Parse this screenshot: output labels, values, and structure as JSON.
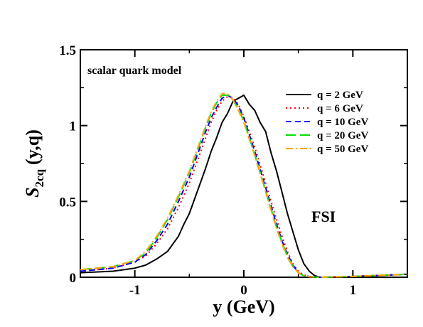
{
  "chart_data": {
    "type": "line",
    "xlabel": "y (GeV)",
    "ylabel": {
      "main": "S",
      "sub": "2cq",
      "rest": "(y,q)"
    },
    "xlim": [
      -1.5,
      1.5
    ],
    "ylim": [
      0,
      1.5
    ],
    "xticks": [
      -1,
      0,
      1
    ],
    "xtick_labels": [
      "-1",
      "0",
      "1"
    ],
    "yticks": [
      0,
      0.5,
      1,
      1.5
    ],
    "ytick_labels": [
      "0",
      "0.5",
      "1",
      "1.5"
    ],
    "grid": false,
    "legend_position": "top-right",
    "annotations": {
      "model": "scalar quark model",
      "fsi": "FSI"
    },
    "series": [
      {
        "name": "q = 2 GeV",
        "color": "#000000",
        "dash": "solid",
        "x": [
          -1.5,
          -1.2,
          -1.0,
          -0.9,
          -0.8,
          -0.7,
          -0.65,
          -0.6,
          -0.55,
          -0.5,
          -0.45,
          -0.4,
          -0.35,
          -0.3,
          -0.25,
          -0.2,
          -0.15,
          -0.1,
          -0.05,
          0.0,
          0.05,
          0.1,
          0.15,
          0.2,
          0.25,
          0.3,
          0.35,
          0.4,
          0.45,
          0.5,
          0.55,
          0.6,
          0.65,
          0.7,
          0.8,
          1.0,
          1.2,
          1.5
        ],
        "y": [
          0.03,
          0.04,
          0.06,
          0.08,
          0.12,
          0.17,
          0.22,
          0.27,
          0.35,
          0.42,
          0.52,
          0.62,
          0.72,
          0.83,
          0.92,
          1.02,
          1.08,
          1.16,
          1.18,
          1.2,
          1.14,
          1.1,
          1.02,
          0.96,
          0.82,
          0.7,
          0.56,
          0.42,
          0.3,
          0.18,
          0.09,
          0.04,
          0.01,
          0.0,
          0.0,
          0.005,
          0.01,
          0.02
        ]
      },
      {
        "name": "q = 6 GeV",
        "color": "#ff0000",
        "dash": "dotted",
        "x": [
          -1.5,
          -1.2,
          -1.0,
          -0.9,
          -0.8,
          -0.7,
          -0.6,
          -0.5,
          -0.45,
          -0.4,
          -0.35,
          -0.3,
          -0.25,
          -0.2,
          -0.15,
          -0.1,
          -0.05,
          0.0,
          0.05,
          0.1,
          0.15,
          0.2,
          0.25,
          0.3,
          0.35,
          0.4,
          0.45,
          0.5,
          0.55,
          0.6,
          0.7,
          1.0,
          1.5
        ],
        "y": [
          0.04,
          0.06,
          0.1,
          0.14,
          0.22,
          0.32,
          0.46,
          0.62,
          0.72,
          0.82,
          0.92,
          1.02,
          1.1,
          1.16,
          1.19,
          1.18,
          1.14,
          1.06,
          0.96,
          0.86,
          0.74,
          0.62,
          0.5,
          0.38,
          0.27,
          0.17,
          0.09,
          0.04,
          0.015,
          0.005,
          0.0,
          0.005,
          0.02
        ]
      },
      {
        "name": "q = 10 GeV",
        "color": "#0000ff",
        "dash": "dashed",
        "x": [
          -1.5,
          -1.2,
          -1.0,
          -0.9,
          -0.8,
          -0.7,
          -0.6,
          -0.5,
          -0.45,
          -0.4,
          -0.35,
          -0.3,
          -0.25,
          -0.2,
          -0.15,
          -0.1,
          -0.05,
          0.0,
          0.05,
          0.1,
          0.15,
          0.2,
          0.25,
          0.3,
          0.35,
          0.4,
          0.45,
          0.5,
          0.55,
          0.6,
          0.7,
          1.0,
          1.5
        ],
        "y": [
          0.04,
          0.06,
          0.1,
          0.15,
          0.24,
          0.35,
          0.5,
          0.66,
          0.76,
          0.86,
          0.96,
          1.05,
          1.12,
          1.18,
          1.2,
          1.18,
          1.13,
          1.05,
          0.94,
          0.83,
          0.71,
          0.59,
          0.47,
          0.35,
          0.24,
          0.15,
          0.08,
          0.03,
          0.01,
          0.005,
          0.0,
          0.005,
          0.02
        ]
      },
      {
        "name": "q = 20 GeV",
        "color": "#00e000",
        "dash": "longdash",
        "x": [
          -1.5,
          -1.2,
          -1.0,
          -0.9,
          -0.8,
          -0.7,
          -0.6,
          -0.5,
          -0.45,
          -0.4,
          -0.35,
          -0.3,
          -0.25,
          -0.2,
          -0.15,
          -0.1,
          -0.05,
          0.0,
          0.05,
          0.1,
          0.15,
          0.2,
          0.25,
          0.3,
          0.35,
          0.4,
          0.45,
          0.5,
          0.55,
          0.6,
          0.7,
          1.0,
          1.5
        ],
        "y": [
          0.05,
          0.07,
          0.11,
          0.16,
          0.26,
          0.38,
          0.53,
          0.69,
          0.79,
          0.89,
          0.99,
          1.08,
          1.15,
          1.2,
          1.2,
          1.17,
          1.11,
          1.03,
          0.92,
          0.81,
          0.69,
          0.57,
          0.45,
          0.33,
          0.23,
          0.14,
          0.07,
          0.03,
          0.01,
          0.003,
          0.0,
          0.005,
          0.02
        ]
      },
      {
        "name": "q = 50 GeV",
        "color": "#ffa500",
        "dash": "dashdot",
        "x": [
          -1.5,
          -1.2,
          -1.0,
          -0.9,
          -0.8,
          -0.7,
          -0.6,
          -0.5,
          -0.45,
          -0.4,
          -0.35,
          -0.3,
          -0.25,
          -0.2,
          -0.15,
          -0.1,
          -0.05,
          0.0,
          0.05,
          0.1,
          0.15,
          0.2,
          0.25,
          0.3,
          0.35,
          0.4,
          0.45,
          0.5,
          0.55,
          0.6,
          0.7,
          1.0,
          1.5
        ],
        "y": [
          0.05,
          0.07,
          0.11,
          0.17,
          0.27,
          0.39,
          0.54,
          0.7,
          0.8,
          0.9,
          1.0,
          1.09,
          1.16,
          1.21,
          1.21,
          1.17,
          1.1,
          1.02,
          0.91,
          0.8,
          0.68,
          0.56,
          0.44,
          0.32,
          0.22,
          0.13,
          0.07,
          0.03,
          0.01,
          0.003,
          0.0,
          0.005,
          0.02
        ]
      }
    ]
  }
}
